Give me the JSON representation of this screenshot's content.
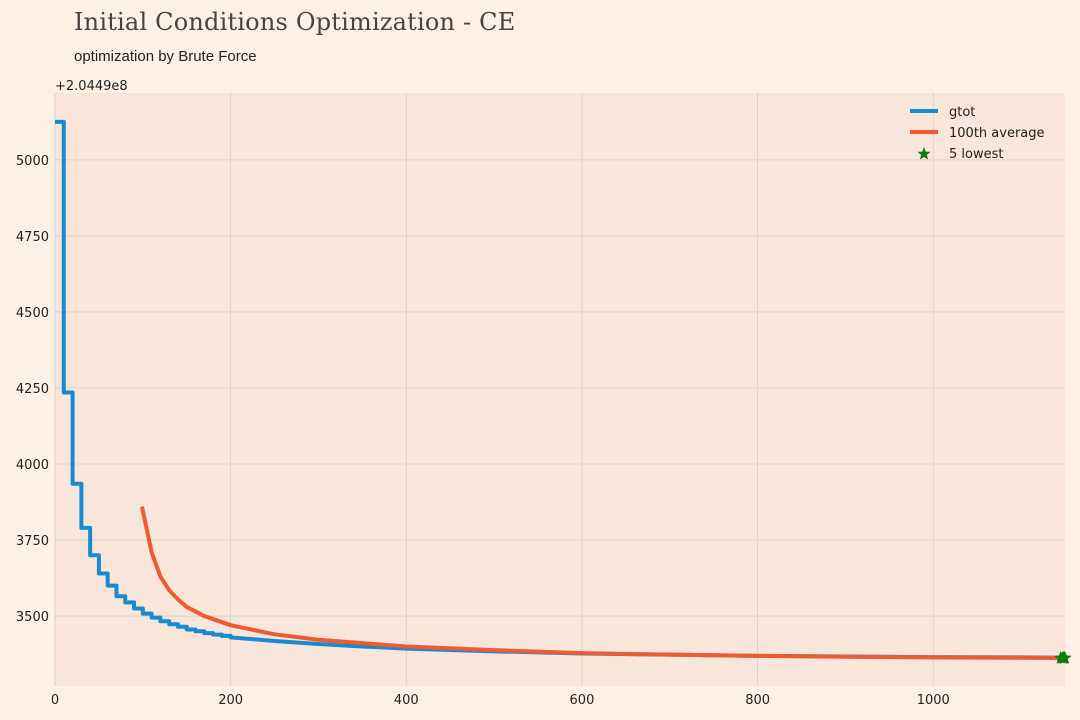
{
  "title": "Initial Conditions Optimization - CE",
  "subtitle": "optimization by Brute Force",
  "colors": {
    "background": "#fdf1e7",
    "plot_background": "#f9e6da",
    "grid": "#cfcfcf",
    "gtot": "#1a8ad0",
    "average": "#f05a33",
    "lowest": "#0a7d0a"
  },
  "chart_data": {
    "type": "line",
    "title": "Initial Conditions Optimization - CE",
    "subtitle": "optimization by Brute Force",
    "y_offset_label": "+2.0449e8",
    "xlim": [
      0,
      1150
    ],
    "ylim": [
      3270,
      5220
    ],
    "x_ticks": [
      0,
      200,
      400,
      600,
      800,
      1000
    ],
    "y_ticks": [
      3500,
      3750,
      4000,
      4250,
      4500,
      4750,
      5000
    ],
    "grid": true,
    "legend_position": "top-right",
    "series": [
      {
        "name": "gtot",
        "kind": "step",
        "color": "#1a8ad0",
        "x": [
          0,
          10,
          10,
          20,
          20,
          30,
          30,
          40,
          40,
          50,
          50,
          60,
          60,
          70,
          70,
          80,
          80,
          90,
          90,
          100,
          100,
          110,
          110,
          120,
          120,
          130,
          130,
          140,
          140,
          150,
          150,
          160,
          160,
          170,
          170,
          180,
          180,
          190,
          190,
          200,
          200,
          250,
          300,
          350,
          400,
          500,
          600,
          700,
          800,
          900,
          1000,
          1100,
          1150
        ],
        "y": [
          5125,
          5125,
          4235,
          4235,
          3935,
          3935,
          3790,
          3790,
          3700,
          3700,
          3640,
          3640,
          3600,
          3600,
          3565,
          3565,
          3545,
          3545,
          3525,
          3525,
          3508,
          3508,
          3495,
          3495,
          3483,
          3483,
          3473,
          3473,
          3465,
          3465,
          3456,
          3456,
          3450,
          3450,
          3444,
          3444,
          3439,
          3439,
          3435,
          3435,
          3430,
          3418,
          3408,
          3400,
          3393,
          3384,
          3377,
          3373,
          3369,
          3367,
          3365,
          3364,
          3363
        ]
      },
      {
        "name": "100th average",
        "kind": "line",
        "color": "#f05a33",
        "x": [
          99,
          110,
          120,
          130,
          140,
          150,
          170,
          200,
          250,
          300,
          400,
          500,
          600,
          700,
          800,
          900,
          1000,
          1100,
          1150
        ],
        "y": [
          3860,
          3710,
          3630,
          3585,
          3555,
          3530,
          3500,
          3470,
          3440,
          3422,
          3400,
          3388,
          3378,
          3373,
          3369,
          3366,
          3364,
          3363,
          3362
        ]
      },
      {
        "name": "5 lowest",
        "kind": "scatter",
        "marker": "star",
        "color": "#0a7d0a",
        "x": [
          1145,
          1147,
          1148,
          1149,
          1150
        ],
        "y": [
          3362,
          3362,
          3362,
          3362,
          3362
        ]
      }
    ]
  }
}
